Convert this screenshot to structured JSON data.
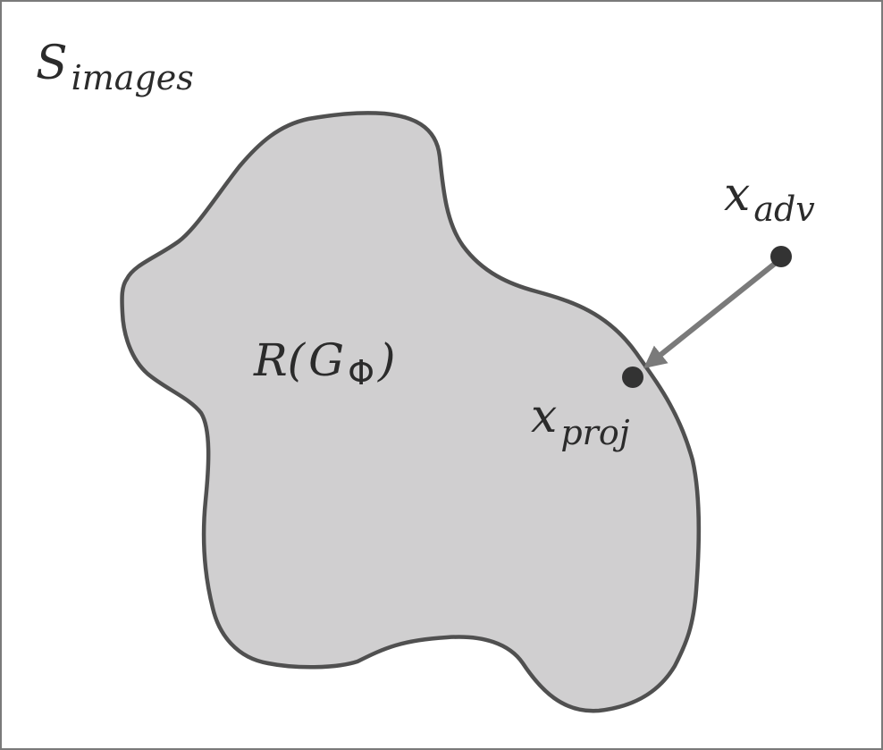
{
  "space_label": {
    "base": "S",
    "subscript": "images"
  },
  "region_label": {
    "prefix": "R(",
    "base": "G",
    "subscript": "Φ",
    "suffix": ")"
  },
  "adv_point_label": {
    "base": "x",
    "subscript": "adv"
  },
  "proj_point_label": {
    "base": "x",
    "subscript": "proj"
  },
  "colors": {
    "region_fill": "#d0cfd0",
    "region_stroke": "#505050",
    "frame_stroke": "#7a7a7a",
    "point_fill": "#333333",
    "arrow": "#7a7a7a",
    "text": "#2b2b2b"
  }
}
